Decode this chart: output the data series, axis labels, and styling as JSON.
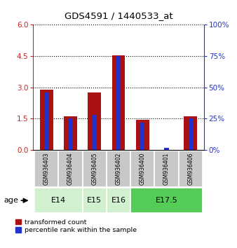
{
  "title": "GDS4591 / 1440533_at",
  "samples": [
    "GSM936403",
    "GSM936404",
    "GSM936405",
    "GSM936402",
    "GSM936400",
    "GSM936401",
    "GSM936406"
  ],
  "red_values": [
    2.9,
    1.6,
    2.75,
    4.55,
    1.45,
    0.0,
    1.6
  ],
  "blue_values_pct": [
    46,
    25,
    28,
    75,
    22,
    2,
    25
  ],
  "ylim_left": [
    0,
    6
  ],
  "ylim_right": [
    0,
    100
  ],
  "yticks_left": [
    0,
    1.5,
    3,
    4.5,
    6
  ],
  "yticks_right": [
    0,
    25,
    50,
    75,
    100
  ],
  "age_groups": [
    {
      "label": "E14",
      "indices": [
        0,
        1
      ],
      "color": "#d0f0d0"
    },
    {
      "label": "E15",
      "indices": [
        2
      ],
      "color": "#d0f0d0"
    },
    {
      "label": "E16",
      "indices": [
        3
      ],
      "color": "#d0f0d0"
    },
    {
      "label": "E17.5",
      "indices": [
        4,
        5,
        6
      ],
      "color": "#55cc55"
    }
  ],
  "red_bar_width": 0.55,
  "blue_bar_width": 0.18,
  "red_color": "#aa1111",
  "blue_color": "#2233cc",
  "sample_bg_color": "#c8c8c8",
  "left_axis_color": "#cc2222",
  "right_axis_color": "#2233cc",
  "grid_linestyle": "dotted",
  "legend_labels": [
    "transformed count",
    "percentile rank within the sample"
  ]
}
